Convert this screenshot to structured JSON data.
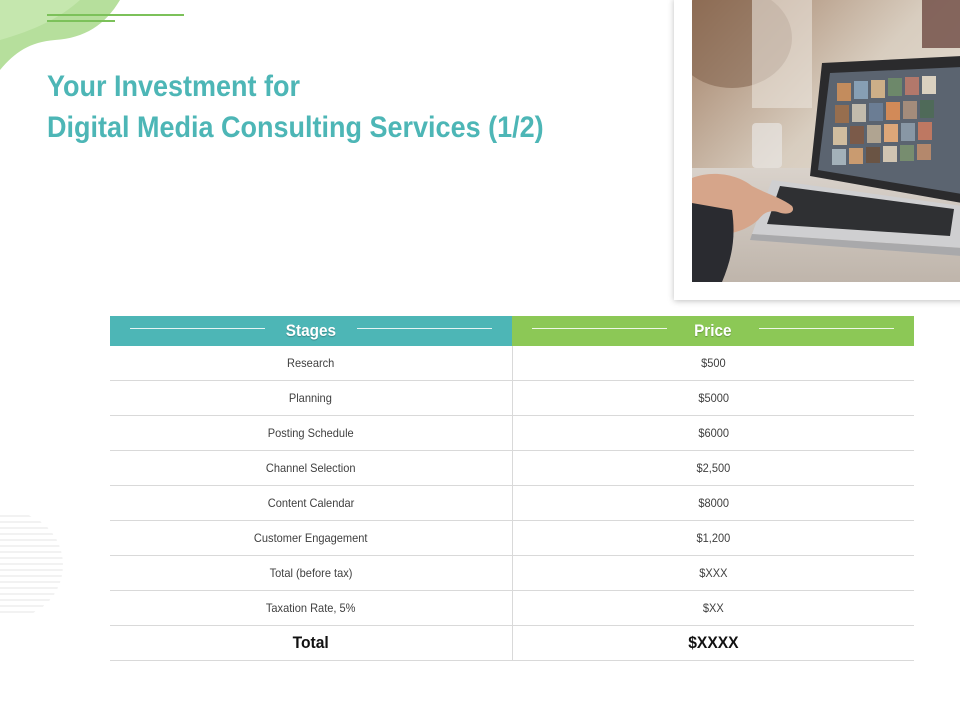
{
  "title": {
    "line1": "Your Investment for",
    "line2": "Digital Media Consulting Services (1/2)"
  },
  "colors": {
    "teal": "#4db6b6",
    "green": "#8cc856",
    "title_color": "#4db6b6"
  },
  "photo": {
    "icon": "laptop-photo"
  },
  "table": {
    "headers": [
      "Stages",
      "Price"
    ],
    "rows": [
      {
        "stage": "Research",
        "price": "$500"
      },
      {
        "stage": "Planning",
        "price": "$5000"
      },
      {
        "stage": "Posting Schedule",
        "price": "$6000"
      },
      {
        "stage": "Channel Selection",
        "price": "$2,500"
      },
      {
        "stage": "Content Calendar",
        "price": "$8000"
      },
      {
        "stage": "Customer Engagement",
        "price": "$1,200"
      },
      {
        "stage": "Total (before tax)",
        "price": "$XXX"
      },
      {
        "stage": "Taxation Rate, 5%",
        "price": "$XX"
      }
    ],
    "total": {
      "label": "Total",
      "value": "$XXXX"
    }
  }
}
